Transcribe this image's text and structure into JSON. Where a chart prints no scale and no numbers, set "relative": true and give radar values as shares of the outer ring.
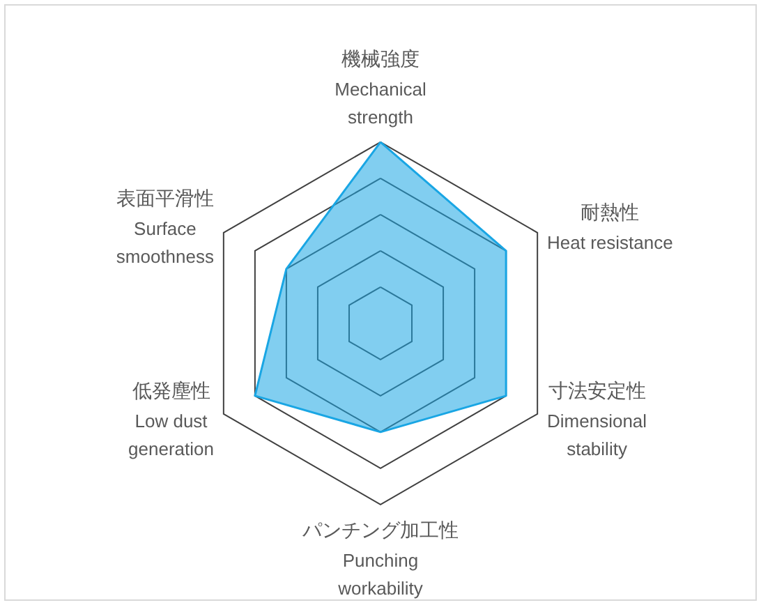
{
  "chart_data": {
    "type": "radar",
    "relative": true,
    "categories": [
      "機械強度\nMechanical\nstrength",
      "耐熱性\nHeat resistance",
      "寸法安定性\nDimensional\nstability",
      "パンチング加工性\nPunching\nworkability",
      "低発塵性\nLow dust\ngeneration",
      "表面平滑性\nSurface\nsmoothness"
    ],
    "series": [
      {
        "color": "#1aa6e4",
        "values": [
          1,
          0.8,
          0.8,
          0.6,
          0.8,
          0.6
        ]
      }
    ]
  }
}
